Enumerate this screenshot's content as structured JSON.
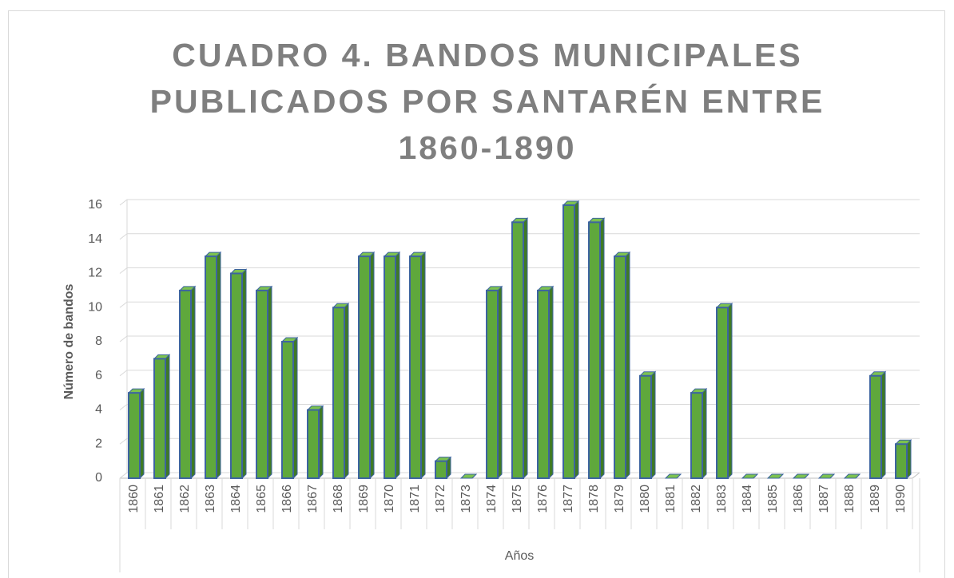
{
  "chart_data": {
    "type": "bar",
    "title": "CUADRO 4. BANDOS MUNICIPALES PUBLICADOS POR SANTARÉN ENTRE 1860-1890",
    "x_label": "Años",
    "y_label": "Número de bandos",
    "categories": [
      "1860",
      "1861",
      "1862",
      "1863",
      "1864",
      "1865",
      "1866",
      "1867",
      "1868",
      "1869",
      "1870",
      "1871",
      "1872",
      "1873",
      "1874",
      "1875",
      "1876",
      "1877",
      "1878",
      "1879",
      "1880",
      "1881",
      "1882",
      "1883",
      "1884",
      "1885",
      "1886",
      "1887",
      "1888",
      "1889",
      "1890"
    ],
    "values": [
      5,
      7,
      11,
      13,
      12,
      11,
      8,
      4,
      10,
      13,
      13,
      13,
      1,
      0,
      11,
      15,
      11,
      16,
      15,
      13,
      6,
      0,
      5,
      10,
      0,
      0,
      0,
      0,
      0,
      6,
      2
    ],
    "color": "#5fa83c",
    "edge_color": "#3d64a0",
    "ylim": [
      0,
      16
    ],
    "yticks": [
      0,
      2,
      4,
      6,
      8,
      10,
      12,
      14,
      16
    ],
    "grid": true
  }
}
